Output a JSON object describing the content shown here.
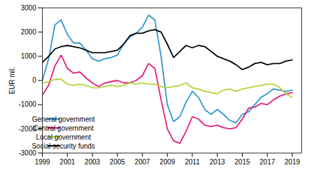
{
  "chart_data": {
    "type": "line",
    "y_label": "EUR mil.",
    "x": [
      1999,
      1999.5,
      2000,
      2000.5,
      2001,
      2001.5,
      2002,
      2002.5,
      2003,
      2003.5,
      2004,
      2004.5,
      2005,
      2005.5,
      2006,
      2006.5,
      2007,
      2007.5,
      2008,
      2008.5,
      2009,
      2009.5,
      2010,
      2010.5,
      2011,
      2011.5,
      2012,
      2012.5,
      2013,
      2013.5,
      2014,
      2014.5,
      2015,
      2015.5,
      2016,
      2016.5,
      2017,
      2017.5,
      2018,
      2018.5,
      2019
    ],
    "series": [
      {
        "name": "General government",
        "color": "#2e94d2",
        "values": [
          0,
          900,
          2300,
          2500,
          1900,
          1550,
          1550,
          1250,
          900,
          800,
          900,
          950,
          1050,
          1500,
          1800,
          1950,
          2200,
          2700,
          2500,
          1000,
          -1000,
          -1700,
          -1500,
          -900,
          -450,
          -700,
          -1200,
          -1400,
          -1200,
          -1400,
          -1650,
          -1750,
          -1400,
          -1300,
          -1000,
          -700,
          -550,
          -350,
          -400,
          -450,
          -400
        ]
      },
      {
        "name": "Central government",
        "color": "#e2197c",
        "values": [
          -600,
          -200,
          600,
          1050,
          500,
          300,
          350,
          100,
          -100,
          -250,
          -100,
          -50,
          0,
          -100,
          -100,
          0,
          200,
          700,
          500,
          -800,
          -2000,
          -2500,
          -2600,
          -2100,
          -1500,
          -1600,
          -1850,
          -1900,
          -1850,
          -1950,
          -2000,
          -1950,
          -1600,
          -1150,
          -1100,
          -950,
          -1000,
          -800,
          -650,
          -550,
          -500
        ]
      },
      {
        "name": "Local government",
        "color": "#b3d334",
        "values": [
          -100,
          -50,
          50,
          50,
          -150,
          -200,
          -150,
          -200,
          -300,
          -300,
          -250,
          -200,
          -250,
          -200,
          -100,
          -150,
          -100,
          -150,
          -150,
          -250,
          -300,
          -250,
          -200,
          -100,
          -300,
          -350,
          -450,
          -500,
          -550,
          -400,
          -350,
          -450,
          -350,
          -300,
          -250,
          -200,
          -150,
          -150,
          -300,
          -550,
          -700
        ]
      },
      {
        "name": "Social security funds",
        "color": "#000000",
        "values": [
          750,
          1000,
          1300,
          1400,
          1450,
          1400,
          1350,
          1250,
          1150,
          1150,
          1150,
          1200,
          1250,
          1500,
          1850,
          1950,
          1950,
          2050,
          2100,
          2000,
          1500,
          950,
          1200,
          1450,
          1350,
          1450,
          1400,
          1200,
          1000,
          900,
          800,
          650,
          450,
          550,
          700,
          750,
          650,
          700,
          700,
          800,
          850
        ]
      }
    ],
    "xlim": [
      1999,
      2019.75
    ],
    "xticks": [
      1999,
      2001,
      2003,
      2005,
      2007,
      2009,
      2011,
      2013,
      2015,
      2017,
      2019
    ],
    "ylim": [
      -3000,
      3000
    ],
    "yticks": [
      -3000,
      -2000,
      -1000,
      0,
      1000,
      2000,
      3000
    ],
    "grid": false,
    "legend": "bottom-left"
  }
}
